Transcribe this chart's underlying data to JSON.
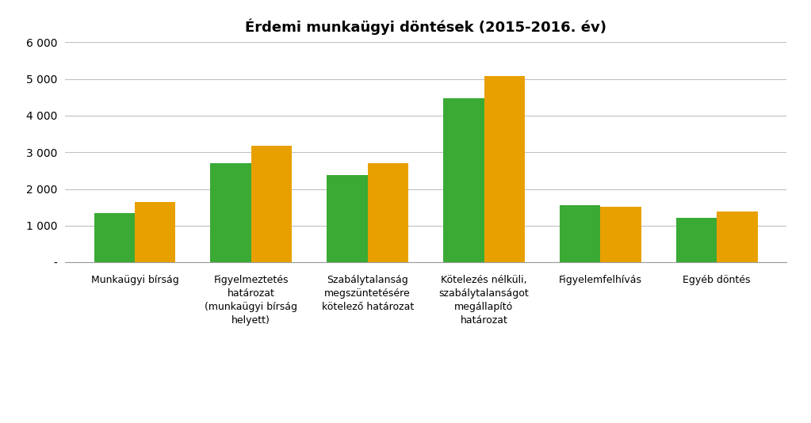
{
  "title": "Érdemi munkaügyi döntések (2015-2016. év)",
  "categories": [
    "Munkaügyi bírság",
    "Figyelmeztetés\nhatározat\n(munkaügyi bírság\nhelyett)",
    "Szabálytalanság\nmegszüntetésére\nkötelező határozat",
    "Kötelezés nélküli,\nszabálytalanságot\nmegállapító\nhatározat",
    "Figyelemfelhívás",
    "Egyéb döntés"
  ],
  "values_2015": [
    1350,
    2700,
    2380,
    4480,
    1560,
    1220
  ],
  "values_2016": [
    1650,
    3180,
    2700,
    5070,
    1510,
    1380
  ],
  "color_2015": "#3aaa35",
  "color_2016": "#e8a000",
  "ylim": [
    0,
    6000
  ],
  "yticks": [
    0,
    1000,
    2000,
    3000,
    4000,
    5000,
    6000
  ],
  "ytick_labels": [
    "-",
    "1 000",
    "2 000",
    "3 000",
    "4 000",
    "5 000",
    "6 000"
  ],
  "background_color": "#ffffff",
  "grid_color": "#c0c0c0"
}
